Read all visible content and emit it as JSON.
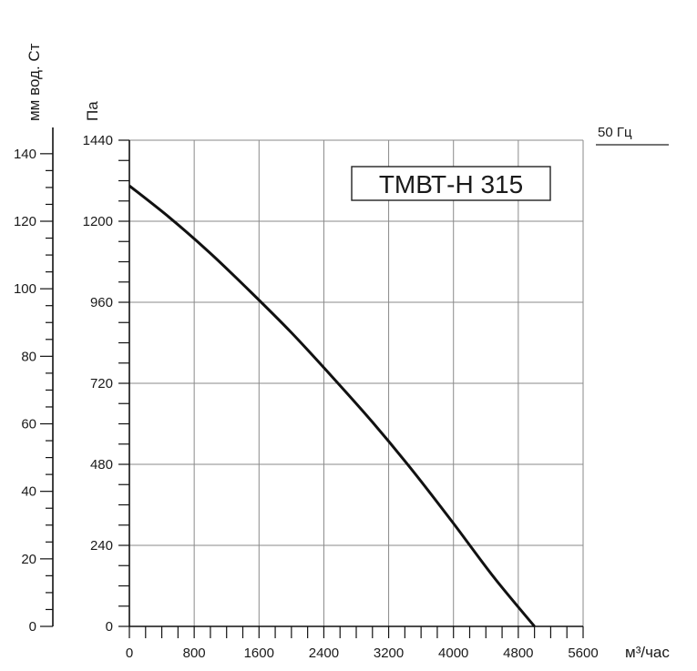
{
  "chart_data": {
    "type": "line",
    "title": "ТМВТ-Н 315",
    "frequency_label": "50 Гц",
    "xlabel": "м³/час",
    "ylabel": "Па",
    "ylabel_secondary": "мм вод. Ст",
    "xlim": [
      0,
      5600
    ],
    "ylim": [
      0,
      1440
    ],
    "ylim_secondary": [
      0,
      144
    ],
    "x_ticks": [
      "0",
      "800",
      "1600",
      "2400",
      "3200",
      "4000",
      "4800",
      "5600"
    ],
    "y_ticks": [
      "0",
      "240",
      "480",
      "720",
      "960",
      "1200",
      "1440"
    ],
    "y_ticks_secondary": [
      "0",
      "20",
      "40",
      "60",
      "80",
      "100",
      "120",
      "140"
    ],
    "grid": true,
    "series": [
      {
        "color": "#111111",
        "x": [
          0,
          500,
          1000,
          1500,
          2000,
          2500,
          3000,
          3500,
          4000,
          4500,
          5000
        ],
        "y": [
          1305,
          1210,
          1105,
          990,
          870,
          740,
          605,
          460,
          305,
          145,
          0
        ]
      }
    ]
  }
}
